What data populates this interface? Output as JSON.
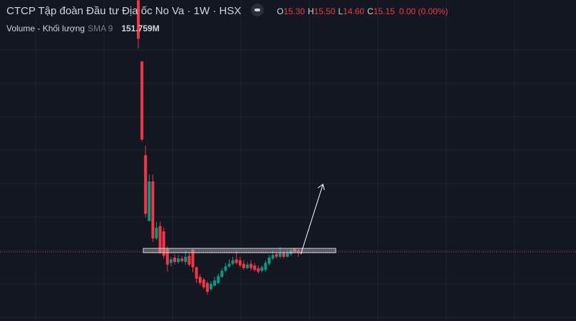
{
  "header": {
    "title": "CTCP Tập đoàn Đầu tư Địa ốc No Va · 1W · HSX",
    "ohlc": [
      {
        "key": "O",
        "value": "15.30"
      },
      {
        "key": "H",
        "value": "15.50"
      },
      {
        "key": "L",
        "value": "14.60"
      },
      {
        "key": "C",
        "value": "15.15"
      }
    ],
    "change": "0.00 (0.00%)",
    "volume": {
      "label": "Volume - Khối lượng",
      "indicator": "SMA 9",
      "value": "151.759M"
    }
  },
  "chart_data": {
    "type": "candlestick",
    "up_color": "#089981",
    "down_color": "#f23645",
    "ylim": [
      7.26,
      43.93
    ],
    "open": [
      43.9,
      36.9,
      26.2,
      18.7,
      23.2,
      16.7,
      18.1,
      17.5,
      15.5,
      13.9,
      14.5,
      14.0,
      14.4,
      14.0,
      14.7,
      15.4,
      13.4,
      12.3,
      12.0,
      11.6,
      10.9,
      11.3,
      11.6,
      12.3,
      13.0,
      13.5,
      13.8,
      14.3,
      14.2,
      13.8,
      13.3,
      13.8,
      13.6,
      13.3,
      13.0,
      13.1,
      13.8,
      14.4,
      14.9,
      14.6,
      15.0,
      14.6,
      14.9,
      15.5,
      15.3
    ],
    "high": [
      43.9,
      37.0,
      27.3,
      24.0,
      24.0,
      18.6,
      18.6,
      17.9,
      15.8,
      14.6,
      14.9,
      14.8,
      14.7,
      15.3,
      15.1,
      15.6,
      13.5,
      12.6,
      12.2,
      11.8,
      11.8,
      12.3,
      12.7,
      13.3,
      13.9,
      14.3,
      14.6,
      15.3,
      14.6,
      14.2,
      14.0,
      14.2,
      13.9,
      13.6,
      13.6,
      14.2,
      14.8,
      15.3,
      15.2,
      15.7,
      15.3,
      15.4,
      15.5,
      15.6,
      15.5
    ],
    "low": [
      38.4,
      27.8,
      19.1,
      18.6,
      16.3,
      16.5,
      14.9,
      14.4,
      12.9,
      13.5,
      13.7,
      13.8,
      13.9,
      13.7,
      13.5,
      12.8,
      11.6,
      11.3,
      10.9,
      10.3,
      10.7,
      11.2,
      11.5,
      12.2,
      12.8,
      13.3,
      13.6,
      13.7,
      13.4,
      13.1,
      13.2,
      13.0,
      12.9,
      12.7,
      12.8,
      12.9,
      13.6,
      14.2,
      14.4,
      14.4,
      14.4,
      14.5,
      14.7,
      15.0,
      14.6
    ],
    "close": [
      39.5,
      28.0,
      19.5,
      23.2,
      16.7,
      17.9,
      15.1,
      14.7,
      13.7,
      14.3,
      14.0,
      14.4,
      14.1,
      14.6,
      13.7,
      13.4,
      12.1,
      11.6,
      11.1,
      10.6,
      11.5,
      11.9,
      12.4,
      13.0,
      13.5,
      13.8,
      14.2,
      13.9,
      13.6,
      13.3,
      13.7,
      13.3,
      13.1,
      12.9,
      13.4,
      13.9,
      14.5,
      14.8,
      14.6,
      15.0,
      14.6,
      15.0,
      15.3,
      15.2,
      15.15
    ]
  }
}
